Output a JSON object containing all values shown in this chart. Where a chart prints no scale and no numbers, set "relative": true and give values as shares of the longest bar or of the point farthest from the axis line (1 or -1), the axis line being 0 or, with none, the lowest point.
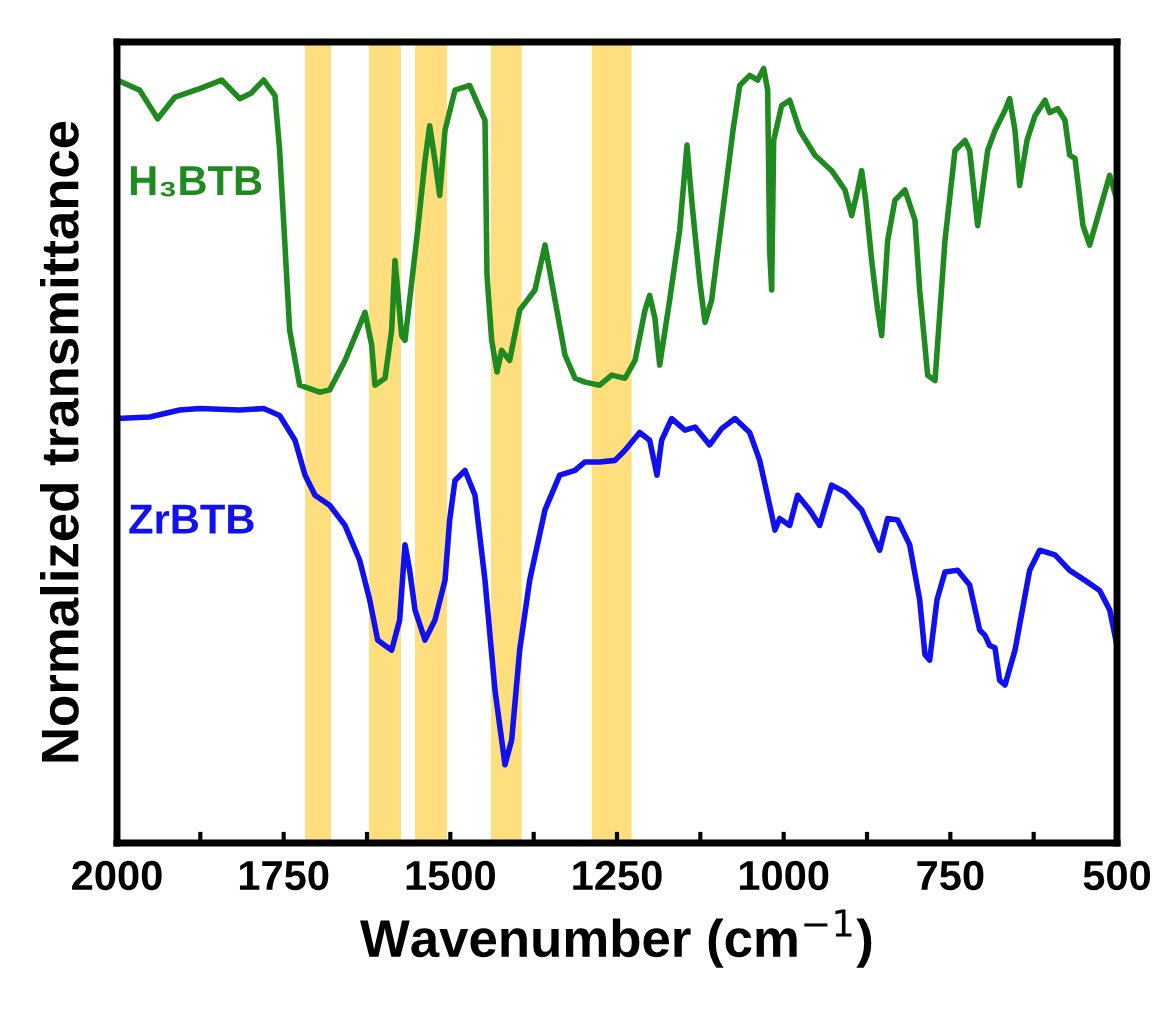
{
  "chart_data": {
    "type": "line",
    "relative": true,
    "xlabel": "Wavenumber (cm$^{−1}$)",
    "ylabel": "Normalized transmittance",
    "xlim": [
      2000,
      500
    ],
    "xticks": [
      2000,
      {
        "value": 1875,
        "label": null
      },
      1750,
      {
        "value": 1625,
        "label": null
      },
      1500,
      {
        "value": 1375,
        "label": null
      },
      1250,
      {
        "value": 1125,
        "label": null
      },
      1000,
      {
        "value": 875,
        "label": null
      },
      750,
      {
        "value": 625,
        "label": null
      },
      500
    ],
    "grid": false,
    "legend": false,
    "marker": "none",
    "line_style": "solid",
    "bands": [
      {
        "axis": "x",
        "from": 1718,
        "to": 1679,
        "color": "#ffd966"
      },
      {
        "axis": "x",
        "from": 1622,
        "to": 1574,
        "color": "#ffd966"
      },
      {
        "axis": "x",
        "from": 1553,
        "to": 1505,
        "color": "#ffd966"
      },
      {
        "axis": "x",
        "from": 1439,
        "to": 1393,
        "color": "#ffd966"
      },
      {
        "axis": "x",
        "from": 1288,
        "to": 1228,
        "color": "#ffd966"
      }
    ],
    "series": [
      {
        "name": "H₃BTB",
        "color": "#1f8a1f",
        "x": [
          2000,
          1966,
          1939,
          1913,
          1876,
          1843,
          1816,
          1799,
          1780,
          1763,
          1756,
          1741,
          1726,
          1696,
          1681,
          1658,
          1628,
          1618,
          1613,
          1598,
          1588,
          1583,
          1573,
          1568,
          1561,
          1549,
          1538,
          1531,
          1523,
          1516,
          1508,
          1493,
          1471,
          1448,
          1445,
          1438,
          1430,
          1423,
          1411,
          1396,
          1373,
          1358,
          1343,
          1328,
          1313,
          1298,
          1276,
          1258,
          1238,
          1223,
          1208,
          1201,
          1193,
          1186,
          1171,
          1156,
          1145,
          1138,
          1126,
          1118,
          1108,
          1093,
          1076,
          1066,
          1051,
          1039,
          1030,
          1024,
          1021,
          1018,
          1015,
          1003,
          991,
          976,
          953,
          928,
          908,
          898,
          889,
          883,
          877,
          868,
          859,
          853,
          844,
          833,
          818,
          803,
          796,
          784,
          773,
          758,
          743,
          728,
          721,
          709,
          694,
          683,
          668,
          661,
          653,
          646,
          635,
          623,
          608,
          601,
          589,
          578,
          571,
          563,
          551,
          541,
          526,
          511,
          500
        ],
        "values": [
          0.985,
          0.972,
          0.935,
          0.963,
          0.974,
          0.985,
          0.961,
          0.968,
          0.985,
          0.965,
          0.894,
          0.662,
          0.591,
          0.582,
          0.585,
          0.623,
          0.685,
          0.643,
          0.591,
          0.6,
          0.662,
          0.752,
          0.655,
          0.649,
          0.701,
          0.791,
          0.881,
          0.926,
          0.881,
          0.836,
          0.92,
          0.972,
          0.978,
          0.933,
          0.733,
          0.649,
          0.608,
          0.636,
          0.623,
          0.688,
          0.714,
          0.772,
          0.701,
          0.63,
          0.6,
          0.595,
          0.591,
          0.604,
          0.6,
          0.623,
          0.688,
          0.707,
          0.677,
          0.617,
          0.701,
          0.791,
          0.901,
          0.83,
          0.726,
          0.672,
          0.701,
          0.804,
          0.92,
          0.978,
          0.991,
          0.985,
          1.0,
          0.972,
          0.765,
          0.714,
          0.907,
          0.952,
          0.959,
          0.92,
          0.888,
          0.868,
          0.843,
          0.81,
          0.843,
          0.868,
          0.83,
          0.752,
          0.688,
          0.655,
          0.778,
          0.83,
          0.843,
          0.804,
          0.714,
          0.604,
          0.597,
          0.778,
          0.894,
          0.907,
          0.894,
          0.797,
          0.894,
          0.92,
          0.946,
          0.961,
          0.92,
          0.849,
          0.907,
          0.939,
          0.959,
          0.943,
          0.948,
          0.933,
          0.888,
          0.884,
          0.797,
          0.772,
          0.817,
          0.862,
          0.83
        ]
      },
      {
        "name": "ZrBTB",
        "color": "#1010f0",
        "x": [
          2000,
          1951,
          1906,
          1876,
          1816,
          1780,
          1756,
          1733,
          1718,
          1703,
          1681,
          1658,
          1636,
          1621,
          1609,
          1598,
          1588,
          1576,
          1568,
          1561,
          1553,
          1538,
          1523,
          1508,
          1501,
          1493,
          1478,
          1463,
          1448,
          1433,
          1418,
          1408,
          1396,
          1381,
          1358,
          1336,
          1313,
          1298,
          1276,
          1253,
          1238,
          1216,
          1201,
          1190,
          1183,
          1168,
          1148,
          1133,
          1111,
          1093,
          1073,
          1051,
          1036,
          1021,
          1013,
          1006,
          991,
          979,
          961,
          946,
          928,
          908,
          883,
          863,
          856,
          844,
          829,
          811,
          796,
          788,
          781,
          770,
          758,
          739,
          721,
          706,
          698,
          691,
          683,
          676,
          668,
          653,
          631,
          616,
          593,
          571,
          548,
          526,
          511,
          500
        ],
        "values": [
          0.548,
          0.55,
          0.559,
          0.561,
          0.559,
          0.561,
          0.552,
          0.52,
          0.475,
          0.449,
          0.436,
          0.41,
          0.365,
          0.314,
          0.262,
          0.255,
          0.249,
          0.288,
          0.385,
          0.352,
          0.301,
          0.262,
          0.288,
          0.339,
          0.417,
          0.468,
          0.481,
          0.449,
          0.339,
          0.197,
          0.101,
          0.133,
          0.249,
          0.339,
          0.43,
          0.475,
          0.481,
          0.492,
          0.492,
          0.494,
          0.507,
          0.53,
          0.52,
          0.475,
          0.52,
          0.548,
          0.533,
          0.537,
          0.514,
          0.535,
          0.548,
          0.53,
          0.494,
          0.436,
          0.404,
          0.419,
          0.41,
          0.449,
          0.43,
          0.41,
          0.462,
          0.453,
          0.43,
          0.391,
          0.378,
          0.419,
          0.417,
          0.385,
          0.314,
          0.243,
          0.236,
          0.314,
          0.35,
          0.352,
          0.333,
          0.275,
          0.268,
          0.255,
          0.252,
          0.21,
          0.204,
          0.249,
          0.352,
          0.378,
          0.372,
          0.352,
          0.339,
          0.326,
          0.301,
          0.255
        ]
      }
    ]
  }
}
